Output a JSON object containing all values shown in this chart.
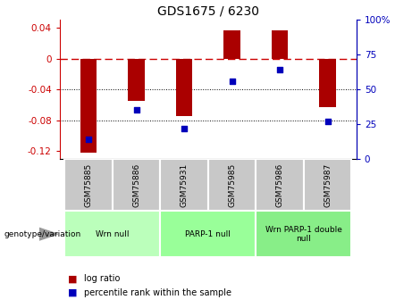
{
  "title": "GDS1675 / 6230",
  "samples": [
    "GSM75885",
    "GSM75886",
    "GSM75931",
    "GSM75985",
    "GSM75986",
    "GSM75987"
  ],
  "log_ratios": [
    -0.122,
    -0.055,
    -0.075,
    0.036,
    0.036,
    -0.063
  ],
  "percentile_ranks": [
    14,
    35,
    22,
    56,
    64,
    27
  ],
  "ylim_left": [
    -0.13,
    0.05
  ],
  "ylim_right": [
    0,
    100
  ],
  "bar_color": "#aa0000",
  "dot_color": "#0000bb",
  "dashed_line_color": "#cc0000",
  "grid_color": "#000000",
  "groups": [
    {
      "label": "Wrn null",
      "samples_idx": [
        0,
        1
      ],
      "color": "#bbffbb"
    },
    {
      "label": "PARP-1 null",
      "samples_idx": [
        2,
        3
      ],
      "color": "#99ff99"
    },
    {
      "label": "Wrn PARP-1 double\nnull",
      "samples_idx": [
        4,
        5
      ],
      "color": "#88ee88"
    }
  ],
  "legend_red": "log ratio",
  "legend_blue": "percentile rank within the sample",
  "genotype_label": "genotype/variation",
  "left_ticks": [
    -0.12,
    -0.08,
    -0.04,
    0,
    0.04
  ],
  "right_ticks": [
    0,
    25,
    50,
    75,
    100
  ],
  "right_tick_labels": [
    "0",
    "25",
    "50",
    "75",
    "100%"
  ],
  "sample_box_color": "#c8c8c8",
  "arrow_color": "#999999"
}
